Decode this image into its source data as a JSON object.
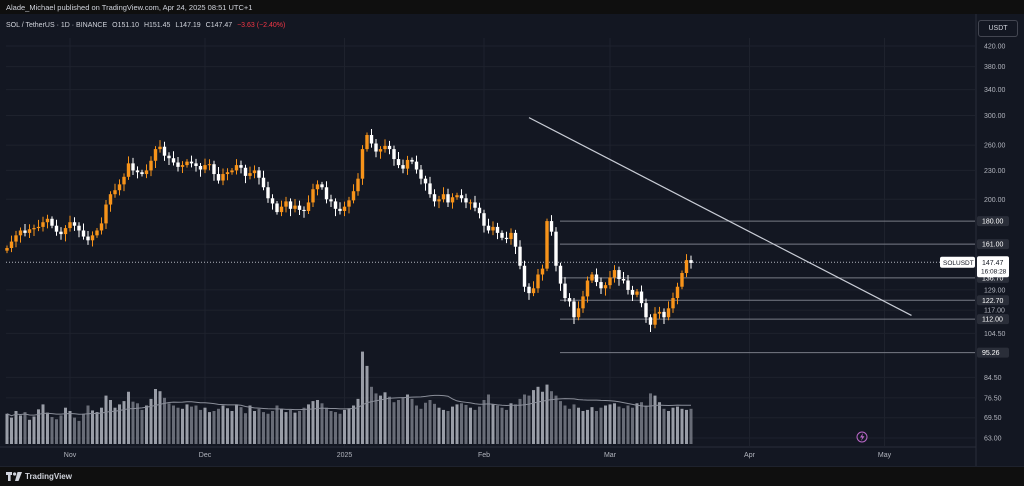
{
  "header": {
    "published_line": "Alade_Michael published on TradingView.com, Apr 24, 2025 08:51 UTC+1",
    "symbol_line": "SOL / TetherUS · 1D · BINANCE",
    "ohlc": {
      "o_label": "O",
      "o": "151.10",
      "h_label": "H",
      "h": "151.45",
      "l_label": "L",
      "l": "147.19",
      "c_label": "C",
      "c": "147.47",
      "change": "−3.63 (−2.40%)"
    },
    "currency_button": "USDT"
  },
  "footer": {
    "brand": "TradingView"
  },
  "chart_data": {
    "type": "candlestick",
    "symbol": "SOL / TetherUS",
    "interval": "1D",
    "exchange": "BINANCE",
    "y_scale": "log",
    "y_range": [
      60,
      440
    ],
    "y_ticks": [
      "420.00",
      "380.00",
      "340.00",
      "300.00",
      "260.00",
      "230.00",
      "200.00",
      "161.00",
      "129.00",
      "117.00",
      "104.50",
      "84.50",
      "76.50",
      "69.50",
      "63.00"
    ],
    "x_labels": [
      "Nov",
      "Dec",
      "2025",
      "Feb",
      "Mar",
      "Apr",
      "May"
    ],
    "x_label_days": [
      0,
      30,
      61,
      92,
      120,
      151,
      181
    ],
    "x_start_date": "2024-10-21",
    "last_price": {
      "symbol_label": "SOLUSDT",
      "price": "147.47",
      "countdown": "16:08:28",
      "value": 147.47
    },
    "horizontal_levels": [
      {
        "value": 180.0,
        "label": "180.00"
      },
      {
        "value": 161.0,
        "label": "161.00"
      },
      {
        "value": 136.7,
        "label": "136.70"
      },
      {
        "value": 122.7,
        "label": "122.70"
      },
      {
        "value": 112.0,
        "label": "112.00"
      },
      {
        "value": 95.26,
        "label": "95.26"
      }
    ],
    "trendline": {
      "start": {
        "day": 102,
        "value": 297
      },
      "end": {
        "day": 187,
        "value": 114
      }
    },
    "colors": {
      "up": "#f7931a",
      "down": "#ffffff",
      "volume_up": "#b2b5be",
      "volume_down": "#787b86",
      "volume_ma": "#8a8e99",
      "grid": "#1e222d",
      "level": "#787b86",
      "trendline": "#c9cdd6",
      "background": "#131722"
    },
    "close_series": [
      158,
      163,
      168,
      172,
      170,
      173,
      174,
      175,
      179,
      182,
      176,
      171,
      169,
      174,
      179,
      176,
      172,
      167,
      164,
      168,
      172,
      178,
      195,
      205,
      209,
      215,
      223,
      238,
      230,
      228,
      226,
      230,
      241,
      255,
      258,
      247,
      244,
      239,
      234,
      236,
      240,
      238,
      235,
      231,
      236,
      237,
      226,
      219,
      226,
      228,
      230,
      236,
      233,
      224,
      227,
      230,
      222,
      212,
      201,
      196,
      188,
      193,
      198,
      191,
      194,
      190,
      189,
      197,
      210,
      215,
      212,
      200,
      198,
      191,
      189,
      193,
      199,
      208,
      221,
      255,
      273,
      262,
      252,
      255,
      259,
      255,
      243,
      236,
      232,
      242,
      240,
      231,
      221,
      216,
      205,
      198,
      200,
      205,
      197,
      202,
      204,
      201,
      197,
      197,
      192,
      187,
      176,
      172,
      175,
      170,
      166,
      165,
      170,
      159,
      145,
      131,
      127,
      130,
      139,
      143,
      180,
      171,
      145,
      133,
      124,
      122,
      113,
      118,
      125,
      135,
      139,
      134,
      130,
      132,
      137,
      142,
      136,
      135,
      129,
      126,
      128,
      121,
      113,
      109,
      115,
      116,
      113,
      118,
      124,
      131,
      140,
      149,
      147
    ],
    "volume_series": [
      55,
      48,
      60,
      52,
      58,
      44,
      50,
      63,
      72,
      57,
      49,
      45,
      52,
      66,
      60,
      48,
      42,
      55,
      70,
      61,
      58,
      66,
      88,
      80,
      66,
      72,
      78,
      95,
      77,
      74,
      62,
      70,
      82,
      100,
      96,
      84,
      74,
      70,
      66,
      64,
      72,
      68,
      70,
      62,
      66,
      58,
      60,
      64,
      70,
      65,
      60,
      72,
      67,
      56,
      70,
      60,
      64,
      58,
      55,
      60,
      70,
      64,
      58,
      62,
      57,
      60,
      66,
      72,
      78,
      80,
      74,
      66,
      60,
      58,
      55,
      62,
      65,
      70,
      82,
      168,
      142,
      104,
      92,
      88,
      94,
      86,
      76,
      80,
      85,
      90,
      82,
      70,
      64,
      75,
      80,
      73,
      66,
      62,
      60,
      68,
      72,
      74,
      71,
      66,
      62,
      68,
      80,
      90,
      72,
      70,
      66,
      62,
      74,
      72,
      82,
      90,
      88,
      98,
      104,
      95,
      108,
      96,
      88,
      78,
      70,
      64,
      72,
      66,
      60,
      62,
      67,
      60,
      66,
      70,
      72,
      74,
      68,
      65,
      70,
      66,
      74,
      76,
      70,
      92,
      88,
      76,
      64,
      60,
      66,
      68,
      64,
      62,
      64
    ]
  }
}
